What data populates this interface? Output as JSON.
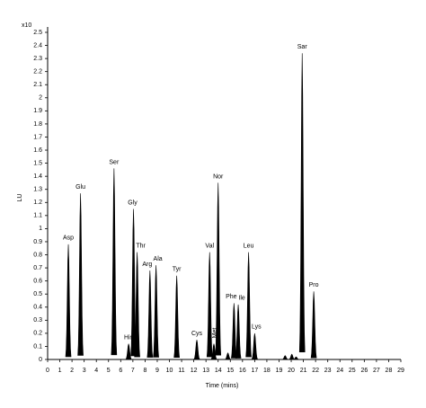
{
  "chart_data": {
    "type": "chromatogram",
    "y_multiplier_label": "x10",
    "y_label": "LU",
    "x_label": "Time (mins)",
    "color": "#000000",
    "categories": [
      "Asp",
      "Glu",
      "Ser",
      "His",
      "Gly",
      "Thr",
      "Arg",
      "Ala",
      "Tyr",
      "Cys",
      "Val",
      "Met",
      "Nor",
      null,
      "Phe",
      "Ile",
      "Leu",
      "Lys",
      null,
      null,
      null,
      "Sar",
      "Pro"
    ],
    "x": [
      1.7,
      2.7,
      5.45,
      6.65,
      7.05,
      7.35,
      8.4,
      8.9,
      10.6,
      12.25,
      13.3,
      13.65,
      14.0,
      14.8,
      15.3,
      15.65,
      16.5,
      17.0,
      19.5,
      20.05,
      20.4,
      20.9,
      21.85
    ],
    "values": [
      0.88,
      1.27,
      1.46,
      0.12,
      1.15,
      0.82,
      0.68,
      0.72,
      0.64,
      0.15,
      0.82,
      0.12,
      1.35,
      0.05,
      0.43,
      0.42,
      0.82,
      0.2,
      0.03,
      0.04,
      0.02,
      2.34,
      0.52
    ],
    "xlim": [
      0,
      29
    ],
    "xticks": [
      0,
      1,
      2,
      3,
      4,
      5,
      6,
      7,
      8,
      9,
      10,
      11,
      12,
      13,
      14,
      15,
      16,
      17,
      18,
      19,
      20,
      21,
      22,
      23,
      24,
      25,
      26,
      27,
      28,
      29
    ],
    "ylim": [
      0,
      2.5
    ],
    "yticks": [
      0,
      0.1,
      0.2,
      0.3,
      0.4,
      0.5,
      0.6,
      0.7,
      0.8,
      0.9,
      1,
      1.1,
      1.2,
      1.3,
      1.4,
      1.5,
      1.6,
      1.7,
      1.8,
      1.9,
      2,
      2.1,
      2.2,
      2.3,
      2.4,
      2.5
    ]
  }
}
